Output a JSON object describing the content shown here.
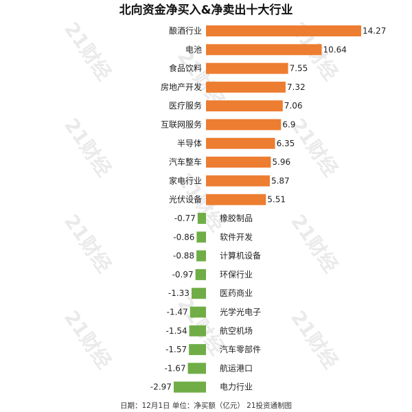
{
  "chart_data": {
    "type": "bar",
    "orientation": "horizontal",
    "title": "北向资金净买入&净卖出十大行业",
    "categories": [
      "酿酒行业",
      "电池",
      "食品饮料",
      "房地产开发",
      "医疗服务",
      "互联网服务",
      "半导体",
      "汽车整车",
      "家电行业",
      "光伏设备",
      "橡胶制品",
      "软件开发",
      "计算机设备",
      "环保行业",
      "医药商业",
      "光学光电子",
      "航空机场",
      "汽车零部件",
      "航运港口",
      "电力行业"
    ],
    "values": [
      14.27,
      10.64,
      7.55,
      7.32,
      7.06,
      6.9,
      6.35,
      5.96,
      5.87,
      5.51,
      -0.77,
      -0.86,
      -0.88,
      -0.97,
      -1.33,
      -1.47,
      -1.54,
      -1.57,
      -1.67,
      -2.97
    ],
    "value_labels": [
      "14.27",
      "10.64",
      "7.55",
      "7.32",
      "7.06",
      "6.9",
      "6.35",
      "5.96",
      "5.87",
      "5.51",
      "-0.77",
      "-0.86",
      "-0.88",
      "-0.97",
      "-1.33",
      "-1.47",
      "-1.54",
      "-1.57",
      "-1.67",
      "-2.97"
    ],
    "xlim": [
      -2.97,
      14.27
    ],
    "grid": false,
    "legend": "none"
  },
  "colors": {
    "positive": "#ED7D31",
    "negative": "#70AD47"
  },
  "footer": "日期：12月1日 单位：净买额（亿元） 21投资通制图",
  "watermark": "21财经"
}
